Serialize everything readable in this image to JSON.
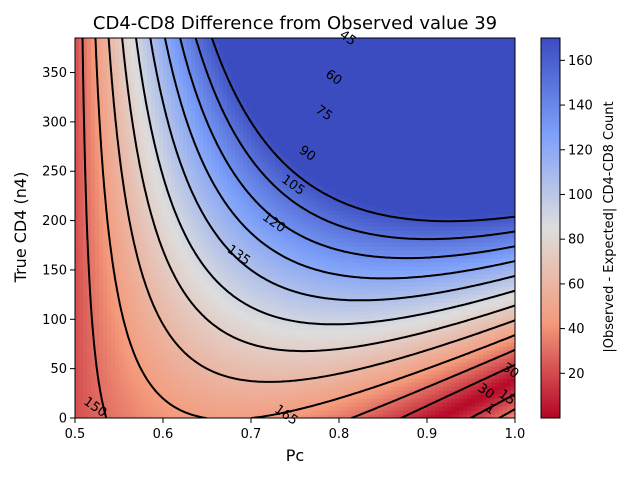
{
  "chart_data": {
    "type": "heatmap",
    "title": "CD4-CD8 Difference from Observed value 39",
    "xlabel": "Pc",
    "ylabel": "True CD4 (n4)",
    "colorbar_label": "|Observed - Expected| CD4-CD8 Count",
    "xlim": [
      0.5,
      1.0
    ],
    "ylim": [
      0,
      385
    ],
    "x_ticks": [
      0.5,
      0.6,
      0.7,
      0.8,
      0.9,
      1.0
    ],
    "x_tick_labels": [
      "0.5",
      "0.6",
      "0.7",
      "0.8",
      "0.9",
      "1.0"
    ],
    "y_ticks": [
      0,
      50,
      100,
      150,
      200,
      250,
      300,
      350
    ],
    "y_tick_labels": [
      "0",
      "50",
      "100",
      "150",
      "200",
      "250",
      "300",
      "350"
    ],
    "colorbar_range": [
      0,
      170
    ],
    "colorbar_ticks": [
      20,
      40,
      60,
      80,
      100,
      120,
      140,
      160
    ],
    "colorbar_tick_labels": [
      "20",
      "40",
      "60",
      "80",
      "100",
      "120",
      "140",
      "160"
    ],
    "colormap": "coolwarm_r",
    "observed_value": 39,
    "contour_levels": [
      15,
      30,
      45,
      60,
      75,
      90,
      105,
      120,
      135,
      150,
      165
    ],
    "contour_labels": [
      {
        "text": "45",
        "x": 0.81,
        "y": 385
      },
      {
        "text": "60",
        "x": 0.794,
        "y": 345
      },
      {
        "text": "75",
        "x": 0.783,
        "y": 309
      },
      {
        "text": "90",
        "x": 0.764,
        "y": 268
      },
      {
        "text": "105",
        "x": 0.748,
        "y": 236
      },
      {
        "text": "120",
        "x": 0.726,
        "y": 198
      },
      {
        "text": "135",
        "x": 0.686,
        "y": 165
      },
      {
        "text": "150",
        "x": 0.523,
        "y": 11
      },
      {
        "text": "165",
        "x": 0.74,
        "y": 3
      },
      {
        "text": "30",
        "x": 0.967,
        "y": 27
      },
      {
        "text": "1",
        "x": 0.972,
        "y": 9
      },
      {
        "text": "30",
        "x": 0.995,
        "y": 48
      },
      {
        "text": "15",
        "x": 0.991,
        "y": 21
      }
    ]
  }
}
